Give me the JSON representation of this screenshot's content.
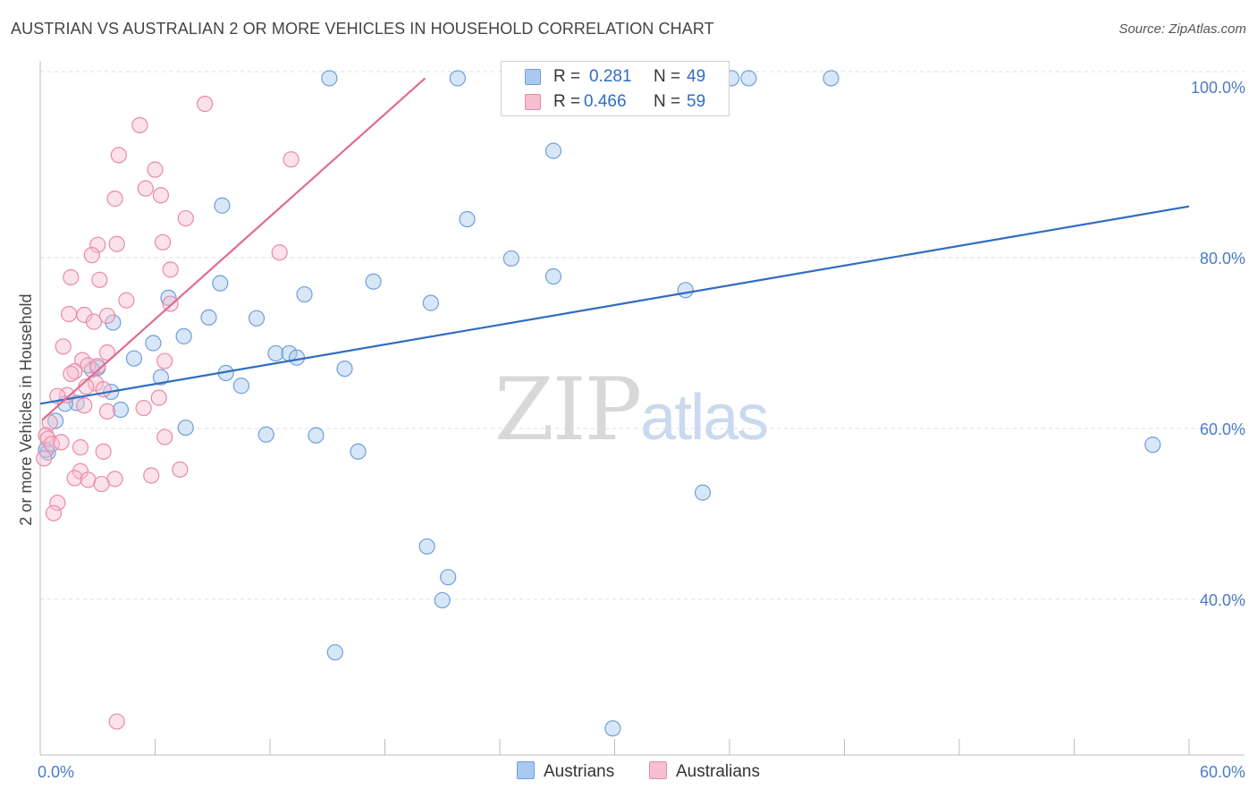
{
  "header": {
    "title": "AUSTRIAN VS AUSTRALIAN 2 OR MORE VEHICLES IN HOUSEHOLD CORRELATION CHART",
    "source": "Source: ZipAtlas.com"
  },
  "watermark": {
    "zip": "ZIP",
    "atlas": "atlas"
  },
  "legend_top": {
    "rows": [
      {
        "r_label": "R =",
        "r_value": "0.281",
        "n_label": "N =",
        "n_value": "49",
        "color": "#a9c9f0",
        "border": "#6f9fd8"
      },
      {
        "r_label": "R =",
        "r_value": "0.466",
        "n_label": "N =",
        "n_value": "59",
        "color": "#f7bfd0",
        "border": "#e98aa8"
      }
    ]
  },
  "legend_bottom": [
    {
      "label": "Austrians",
      "color": "#a9c9f0",
      "border": "#6f9fd8"
    },
    {
      "label": "Australians",
      "color": "#f7bfd0",
      "border": "#e98aa8"
    }
  ],
  "chart_data": {
    "type": "scatter",
    "title": "AUSTRIAN VS AUSTRALIAN 2 OR MORE VEHICLES IN HOUSEHOLD CORRELATION CHART",
    "xlabel": "",
    "ylabel": "2 or more Vehicles in Household",
    "xlim": [
      0,
      60
    ],
    "ylim": [
      22,
      102
    ],
    "x_tick_labels": [
      "0.0%",
      "60.0%"
    ],
    "y_ticks": [
      40,
      60,
      80,
      100
    ],
    "y_tick_labels": [
      "40.0%",
      "60.0%",
      "80.0%",
      "100.0%"
    ],
    "grid": true,
    "legend_placement": "top-center",
    "series": [
      {
        "name": "Austrians",
        "color": "#6f9fd8",
        "fill": "#a9c9f0",
        "trend": {
          "x": [
            0,
            60
          ],
          "y": [
            62.9,
            86.0
          ]
        },
        "points": [
          [
            15.1,
            101.0
          ],
          [
            21.8,
            101.0
          ],
          [
            36.1,
            101.0
          ],
          [
            37.0,
            101.0
          ],
          [
            41.3,
            101.0
          ],
          [
            26.8,
            92.5
          ],
          [
            9.5,
            86.1
          ],
          [
            22.3,
            84.5
          ],
          [
            24.6,
            79.9
          ],
          [
            26.8,
            77.8
          ],
          [
            17.4,
            77.2
          ],
          [
            9.4,
            77.0
          ],
          [
            33.7,
            76.2
          ],
          [
            13.8,
            75.7
          ],
          [
            6.7,
            75.3
          ],
          [
            20.4,
            74.7
          ],
          [
            8.8,
            73.0
          ],
          [
            11.3,
            72.9
          ],
          [
            3.8,
            72.4
          ],
          [
            7.5,
            70.8
          ],
          [
            5.9,
            70.0
          ],
          [
            12.3,
            68.8
          ],
          [
            4.9,
            68.2
          ],
          [
            13.0,
            68.8
          ],
          [
            3.0,
            67.1
          ],
          [
            13.4,
            68.3
          ],
          [
            15.9,
            67.0
          ],
          [
            6.3,
            66.0
          ],
          [
            9.7,
            66.5
          ],
          [
            10.5,
            65.0
          ],
          [
            2.7,
            66.9
          ],
          [
            3.7,
            64.3
          ],
          [
            1.9,
            63.0
          ],
          [
            1.3,
            62.9
          ],
          [
            4.2,
            62.2
          ],
          [
            7.6,
            60.1
          ],
          [
            0.8,
            60.9
          ],
          [
            11.8,
            59.3
          ],
          [
            14.4,
            59.2
          ],
          [
            16.6,
            57.3
          ],
          [
            58.1,
            58.1
          ],
          [
            0.4,
            57.2
          ],
          [
            34.6,
            52.5
          ],
          [
            20.2,
            46.2
          ],
          [
            21.3,
            42.6
          ],
          [
            21.0,
            39.9
          ],
          [
            15.4,
            33.8
          ],
          [
            29.9,
            24.9
          ],
          [
            0.3,
            57.5
          ]
        ]
      },
      {
        "name": "Australians",
        "color": "#e98aa8",
        "fill": "#f7bfd0",
        "trend": {
          "x": [
            0.1,
            20.1
          ],
          "y": [
            61.0,
            101.0
          ]
        },
        "points": [
          [
            8.6,
            98.0
          ],
          [
            5.2,
            95.5
          ],
          [
            4.1,
            92.0
          ],
          [
            13.1,
            91.5
          ],
          [
            6.0,
            90.3
          ],
          [
            5.5,
            88.1
          ],
          [
            6.3,
            87.3
          ],
          [
            3.9,
            86.9
          ],
          [
            7.6,
            84.6
          ],
          [
            6.4,
            81.8
          ],
          [
            3.0,
            81.5
          ],
          [
            4.0,
            81.6
          ],
          [
            12.5,
            80.6
          ],
          [
            2.7,
            80.3
          ],
          [
            6.8,
            78.6
          ],
          [
            1.6,
            77.7
          ],
          [
            3.1,
            77.4
          ],
          [
            4.5,
            75.0
          ],
          [
            6.8,
            74.6
          ],
          [
            3.5,
            73.2
          ],
          [
            1.5,
            73.4
          ],
          [
            2.3,
            73.3
          ],
          [
            2.8,
            72.5
          ],
          [
            1.2,
            69.6
          ],
          [
            3.5,
            68.9
          ],
          [
            2.2,
            68.0
          ],
          [
            2.5,
            67.4
          ],
          [
            6.5,
            67.9
          ],
          [
            3.0,
            67.3
          ],
          [
            1.8,
            66.7
          ],
          [
            1.6,
            66.4
          ],
          [
            2.9,
            65.3
          ],
          [
            2.4,
            64.9
          ],
          [
            3.3,
            64.6
          ],
          [
            1.4,
            63.9
          ],
          [
            0.9,
            63.8
          ],
          [
            6.2,
            63.6
          ],
          [
            2.3,
            62.7
          ],
          [
            5.4,
            62.4
          ],
          [
            3.5,
            62.0
          ],
          [
            0.5,
            60.7
          ],
          [
            0.3,
            59.2
          ],
          [
            0.4,
            58.8
          ],
          [
            0.6,
            58.2
          ],
          [
            1.1,
            58.4
          ],
          [
            6.5,
            59.0
          ],
          [
            2.1,
            57.8
          ],
          [
            3.3,
            57.3
          ],
          [
            0.2,
            56.5
          ],
          [
            2.1,
            55.0
          ],
          [
            1.8,
            54.2
          ],
          [
            3.9,
            54.1
          ],
          [
            2.5,
            54.0
          ],
          [
            3.2,
            53.5
          ],
          [
            0.9,
            51.3
          ],
          [
            0.7,
            50.1
          ],
          [
            7.3,
            55.2
          ],
          [
            5.8,
            54.5
          ],
          [
            4.0,
            25.7
          ]
        ]
      }
    ]
  }
}
